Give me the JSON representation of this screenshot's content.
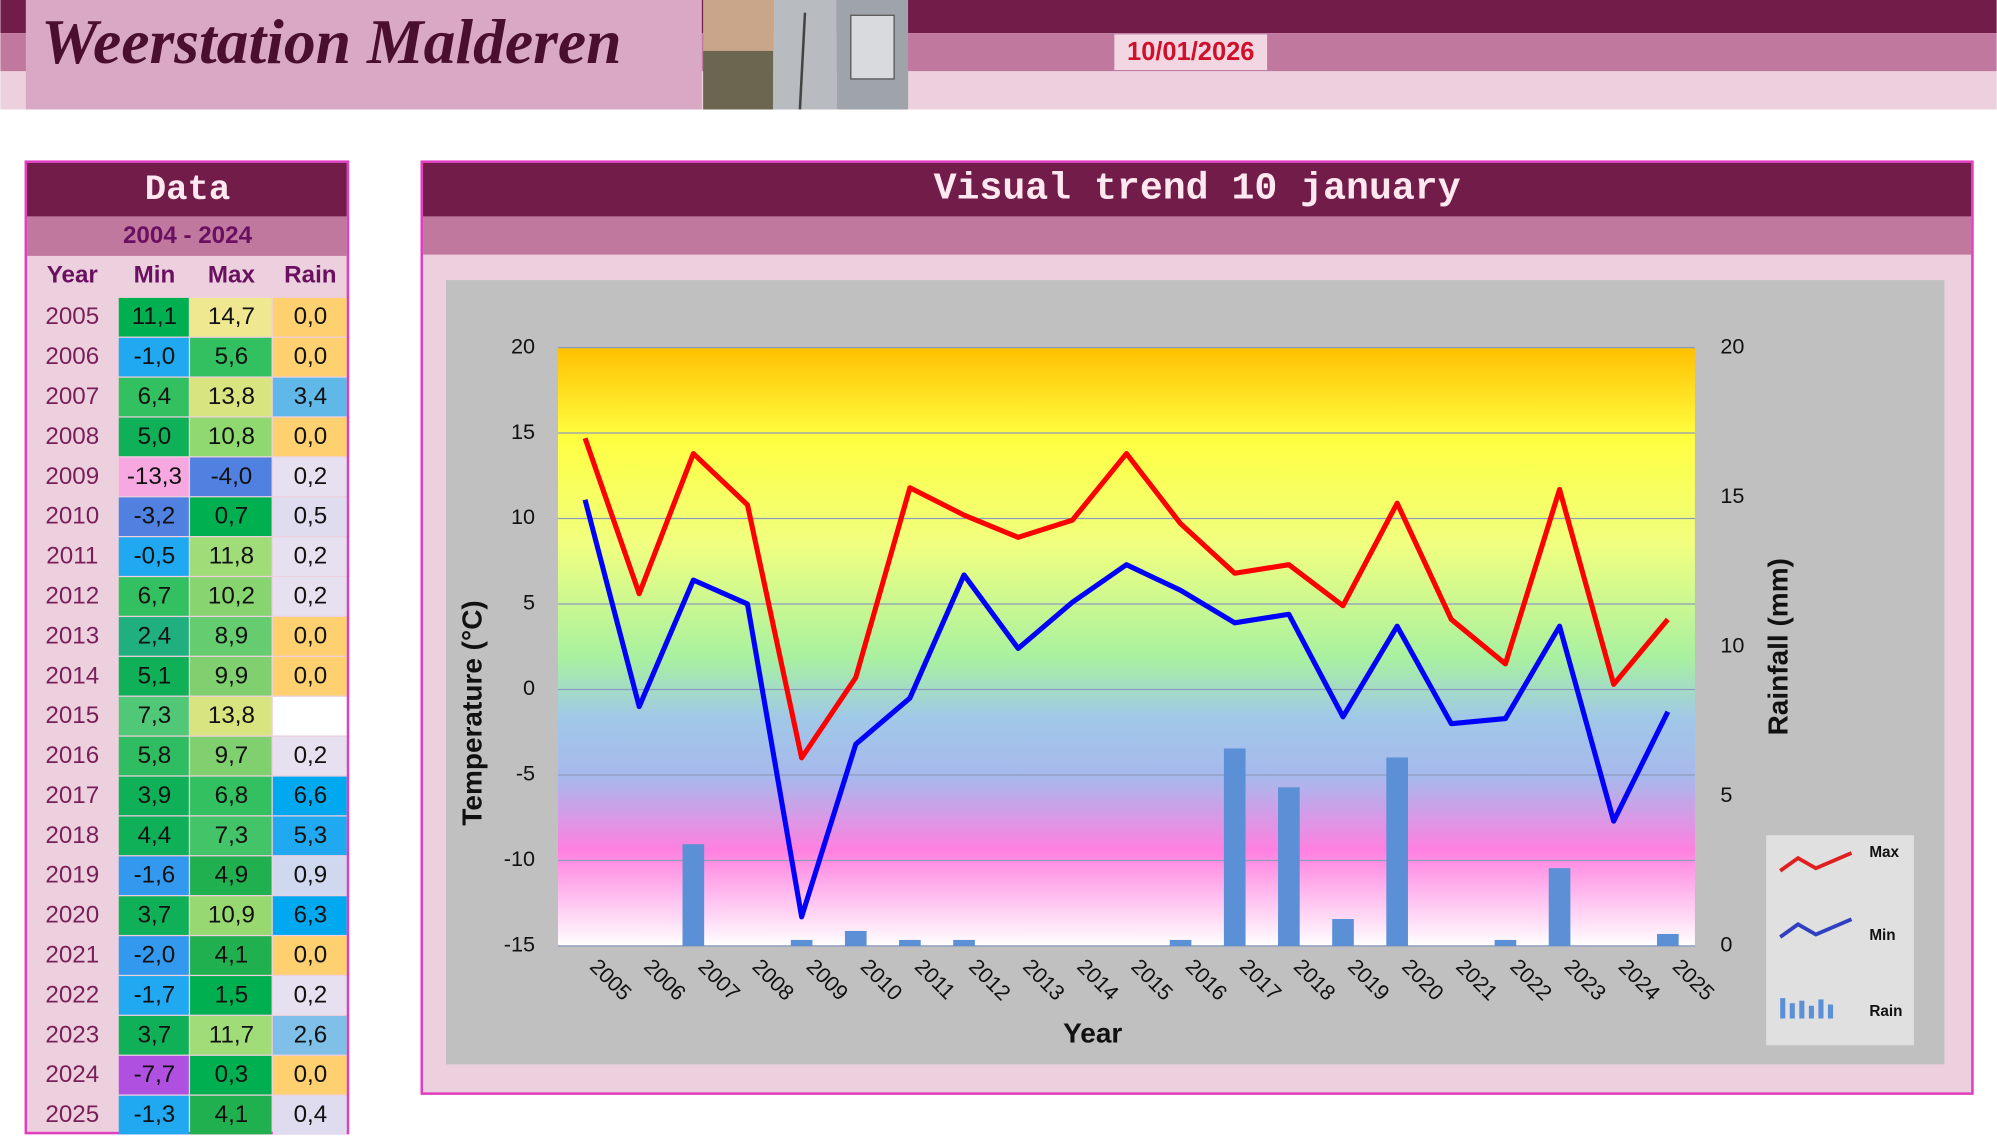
{
  "header": {
    "title": "Weerstation Malderen",
    "date": "10/01/2026"
  },
  "table": {
    "title": "Data",
    "subtitle": "2004 - 2024",
    "columns": [
      "Year",
      "Min",
      "Max",
      "Rain"
    ],
    "rows": [
      [
        "2005",
        "11,1",
        "14,7",
        "0,0"
      ],
      [
        "2006",
        "-1,0",
        "5,6",
        "0,0"
      ],
      [
        "2007",
        "6,4",
        "13,8",
        "3,4"
      ],
      [
        "2008",
        "5,0",
        "10,8",
        "0,0"
      ],
      [
        "2009",
        "-13,3",
        "-4,0",
        "0,2"
      ],
      [
        "2010",
        "-3,2",
        "0,7",
        "0,5"
      ],
      [
        "2011",
        "-0,5",
        "11,8",
        "0,2"
      ],
      [
        "2012",
        "6,7",
        "10,2",
        "0,2"
      ],
      [
        "2013",
        "2,4",
        "8,9",
        "0,0"
      ],
      [
        "2014",
        "5,1",
        "9,9",
        "0,0"
      ],
      [
        "2015",
        "7,3",
        "13,8",
        null
      ],
      [
        "2016",
        "5,8",
        "9,7",
        "0,2"
      ],
      [
        "2017",
        "3,9",
        "6,8",
        "6,6"
      ],
      [
        "2018",
        "4,4",
        "7,3",
        "5,3"
      ],
      [
        "2019",
        "-1,6",
        "4,9",
        "0,9"
      ],
      [
        "2020",
        "3,7",
        "10,9",
        "6,3"
      ],
      [
        "2021",
        "-2,0",
        "4,1",
        "0,0"
      ],
      [
        "2022",
        "-1,7",
        "1,5",
        "0,2"
      ],
      [
        "2023",
        "3,7",
        "11,7",
        "2,6"
      ],
      [
        "2024",
        "-7,7",
        "0,3",
        "0,0"
      ],
      [
        "2025",
        "-1,3",
        "4,1",
        "0,4"
      ]
    ],
    "cell_colors": [
      [
        "#00b050",
        "#f0e890",
        "#ffd070"
      ],
      [
        "#20a8f0",
        "#33c060",
        "#ffd070"
      ],
      [
        "#33c060",
        "#d8e480",
        "#60b8e8"
      ],
      [
        "#10b058",
        "#90d870",
        "#ffd070"
      ],
      [
        "#f8a8e0",
        "#5080e0",
        "#e6e0f0"
      ],
      [
        "#5080e0",
        "#00b050",
        "#e0dcf0"
      ],
      [
        "#20a8f0",
        "#a0dc78",
        "#e6e0f0"
      ],
      [
        "#33c060",
        "#88d470",
        "#e6e0f0"
      ],
      [
        "#20b080",
        "#66cc70",
        "#ffd070"
      ],
      [
        "#10b058",
        "#80d070",
        "#ffd070"
      ],
      [
        "#50c878",
        "#d8e480",
        "#ffffff"
      ],
      [
        "#30bc60",
        "#80d070",
        "#e6e0f0"
      ],
      [
        "#10b058",
        "#33c060",
        "#00a8f0"
      ],
      [
        "#10b058",
        "#44c468",
        "#20a8f0"
      ],
      [
        "#3399ee",
        "#20b050",
        "#d0d8f0"
      ],
      [
        "#10b058",
        "#98d870",
        "#00a8f0"
      ],
      [
        "#3399ee",
        "#20b050",
        "#ffd070"
      ],
      [
        "#20a8f0",
        "#00b050",
        "#e6e0f0"
      ],
      [
        "#10b058",
        "#a0dc78",
        "#80c0e8"
      ],
      [
        "#b050e0",
        "#00b050",
        "#ffd070"
      ],
      [
        "#20a8f0",
        "#20b050",
        "#e0dcf0"
      ]
    ]
  },
  "chart_data": {
    "type": "line",
    "title": "Visual trend 10 january",
    "x_label": "Year",
    "y_label": "Temperature (°C)",
    "y2_label": "Rainfall (mm)",
    "categories": [
      "2005",
      "2006",
      "2007",
      "2008",
      "2009",
      "2010",
      "2011",
      "2012",
      "2013",
      "2014",
      "2015",
      "2016",
      "2017",
      "2018",
      "2019",
      "2020",
      "2021",
      "2022",
      "2023",
      "2024",
      "2025"
    ],
    "ylim": [
      -15,
      20
    ],
    "yticks": [
      -15,
      -10,
      -5,
      0,
      5,
      10,
      15,
      20
    ],
    "y2lim": [
      0,
      20
    ],
    "y2ticks": [
      0,
      5,
      10,
      15,
      20
    ],
    "grid": true,
    "legend": "right",
    "series": [
      {
        "name": "Max",
        "color": "#ff0000",
        "values": [
          14.7,
          5.6,
          13.8,
          10.8,
          -4.0,
          0.7,
          11.8,
          10.2,
          8.9,
          9.9,
          13.8,
          9.7,
          6.8,
          7.3,
          4.9,
          10.9,
          4.1,
          1.5,
          11.7,
          0.3,
          4.1
        ]
      },
      {
        "name": "Min",
        "color": "#0000ff",
        "values": [
          11.1,
          -1.0,
          6.4,
          5.0,
          -13.3,
          -3.2,
          -0.5,
          6.7,
          2.4,
          5.1,
          7.3,
          5.8,
          3.9,
          4.4,
          -1.6,
          3.7,
          -2.0,
          -1.7,
          3.7,
          -7.7,
          -1.3
        ]
      },
      {
        "name": "Rain",
        "type": "bar",
        "axis": "y2",
        "color": "#5b8fd6",
        "values": [
          0,
          0,
          3.4,
          0,
          0.2,
          0.5,
          0.2,
          0.2,
          0,
          0,
          null,
          0.2,
          6.6,
          5.3,
          0.9,
          6.3,
          0,
          0.2,
          2.6,
          0,
          0.4
        ]
      }
    ]
  }
}
